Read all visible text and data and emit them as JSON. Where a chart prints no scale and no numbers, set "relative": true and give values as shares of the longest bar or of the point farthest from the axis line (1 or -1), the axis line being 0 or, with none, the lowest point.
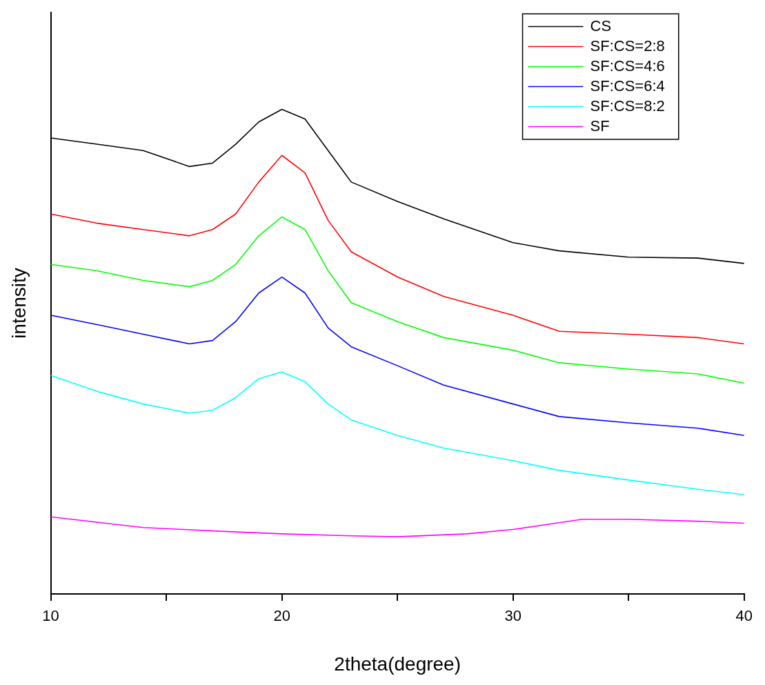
{
  "chart_data": {
    "type": "line",
    "relative": true,
    "xlabel": "2theta(degree)",
    "ylabel": "intensity",
    "xlim": [
      10,
      40
    ],
    "xticks": [
      10,
      {
        "value": 15,
        "label": null
      },
      20,
      {
        "value": 25,
        "label": null
      },
      30,
      {
        "value": 35,
        "label": null
      },
      40
    ],
    "grid": false,
    "legend": "top right",
    "marker": "none",
    "line_style": "solid",
    "x": [
      10,
      12,
      14,
      16,
      17,
      18,
      19,
      20,
      21,
      22,
      23,
      25,
      27,
      30,
      32,
      35,
      38,
      40
    ],
    "series": [
      {
        "name": "CS",
        "color": "#000000",
        "values": [
          0.941,
          0.928,
          0.915,
          0.882,
          0.889,
          0.928,
          0.974,
          1.0,
          0.98,
          0.915,
          0.85,
          0.81,
          0.774,
          0.725,
          0.708,
          0.695,
          0.693,
          0.682
        ]
      },
      {
        "name": "SF:CS=2:8",
        "color": "#ff0000",
        "values": [
          0.784,
          0.765,
          0.752,
          0.739,
          0.752,
          0.784,
          0.85,
          0.905,
          0.869,
          0.771,
          0.706,
          0.654,
          0.614,
          0.575,
          0.542,
          0.536,
          0.529,
          0.516
        ]
      },
      {
        "name": "SF:CS=4:6",
        "color": "#00ff00",
        "values": [
          0.68,
          0.667,
          0.647,
          0.634,
          0.647,
          0.68,
          0.739,
          0.778,
          0.752,
          0.667,
          0.601,
          0.562,
          0.529,
          0.503,
          0.477,
          0.464,
          0.454,
          0.435
        ]
      },
      {
        "name": "SF:CS=6:4",
        "color": "#0000ff",
        "values": [
          0.575,
          0.556,
          0.536,
          0.516,
          0.523,
          0.562,
          0.621,
          0.654,
          0.621,
          0.549,
          0.51,
          0.471,
          0.431,
          0.392,
          0.366,
          0.353,
          0.342,
          0.327
        ]
      },
      {
        "name": "SF:CS=8:2",
        "color": "#00ffff",
        "values": [
          0.451,
          0.418,
          0.392,
          0.373,
          0.379,
          0.405,
          0.444,
          0.458,
          0.438,
          0.392,
          0.359,
          0.327,
          0.301,
          0.275,
          0.255,
          0.235,
          0.216,
          0.205
        ]
      },
      {
        "name": "SF",
        "color": "#ff00ff",
        "x": [
          10,
          14,
          18,
          20,
          23,
          25,
          28,
          30,
          33,
          35,
          38,
          40
        ],
        "values": [
          0.159,
          0.137,
          0.128,
          0.124,
          0.12,
          0.118,
          0.124,
          0.133,
          0.154,
          0.154,
          0.15,
          0.146
        ]
      }
    ]
  }
}
